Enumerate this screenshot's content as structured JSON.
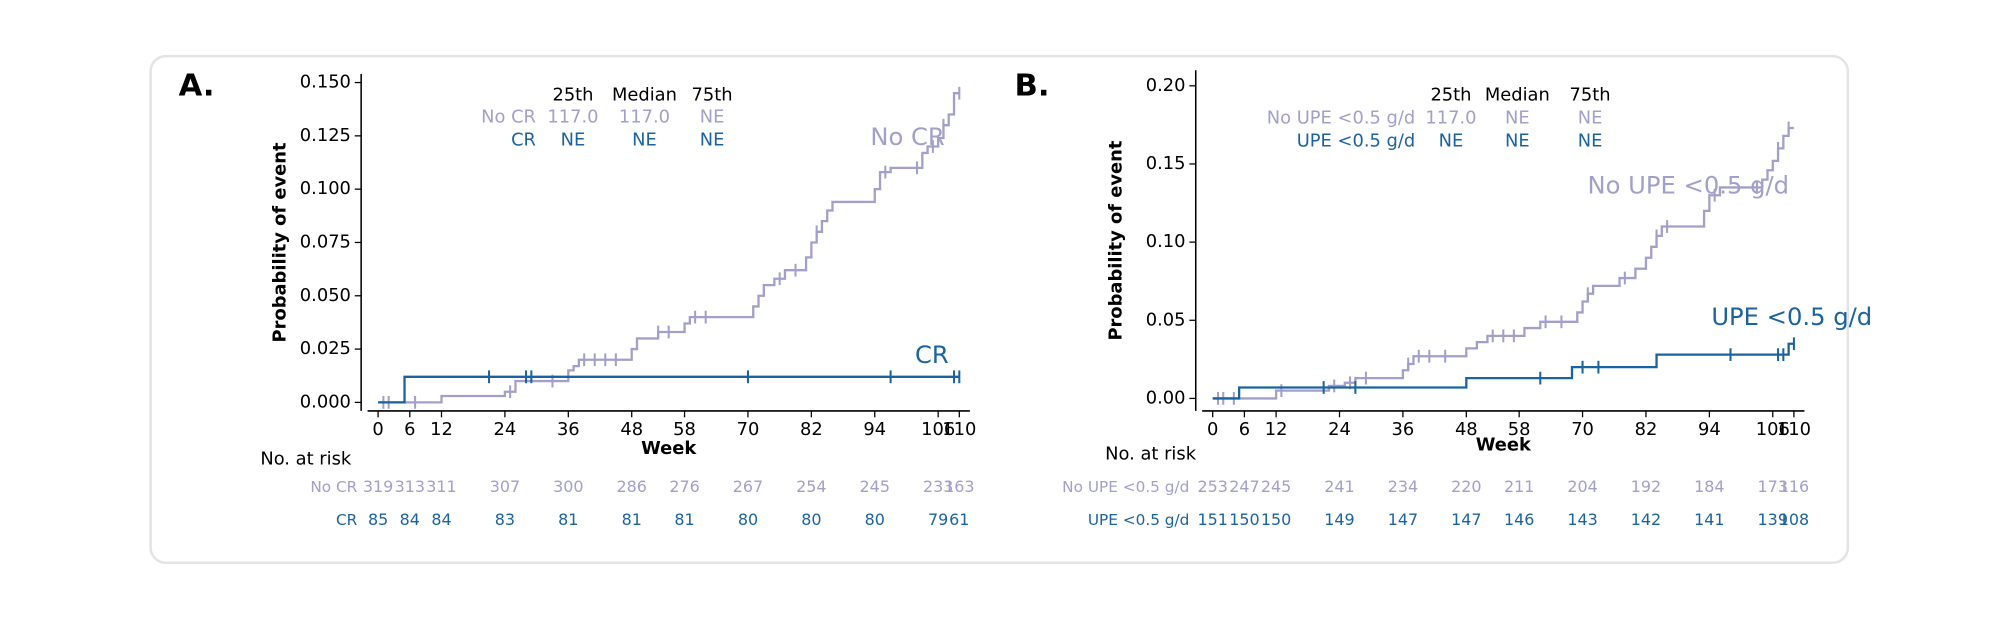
{
  "chart_data": [
    {
      "type": "step",
      "panel_label": "A.",
      "ylabel": "Probability of event",
      "xlabel": "Week",
      "xlim": [
        -2,
        112
      ],
      "ylim": [
        -0.004,
        0.154
      ],
      "xticks": [
        0,
        6,
        12,
        24,
        36,
        48,
        58,
        70,
        82,
        94,
        106,
        110
      ],
      "yticks": [
        {
          "value": 0,
          "label": "0.000"
        },
        {
          "value": 0.025,
          "label": "0.025"
        },
        {
          "value": 0.05,
          "label": "0.050"
        },
        {
          "value": 0.075,
          "label": "0.075"
        },
        {
          "value": 0.1,
          "label": "0.100"
        },
        {
          "value": 0.125,
          "label": "0.125"
        },
        {
          "value": 0.15,
          "label": "0.150"
        }
      ],
      "series": [
        {
          "name": "No CR",
          "color": "#a39fcb",
          "x": [
            0,
            12,
            24,
            26,
            36,
            37,
            38,
            48,
            49,
            53,
            58,
            59,
            71,
            72,
            73,
            75,
            77,
            81,
            82,
            83,
            84,
            85,
            86,
            94,
            95,
            97,
            103,
            104,
            106,
            107,
            108,
            109,
            110
          ],
          "values": [
            0,
            0.003,
            0.005,
            0.01,
            0.015,
            0.017,
            0.02,
            0.025,
            0.03,
            0.033,
            0.037,
            0.04,
            0.045,
            0.05,
            0.055,
            0.058,
            0.062,
            0.068,
            0.075,
            0.08,
            0.085,
            0.09,
            0.094,
            0.1,
            0.108,
            0.11,
            0.117,
            0.12,
            0.124,
            0.13,
            0.135,
            0.145,
            0.145
          ],
          "censored": {
            "x": [
              1,
              2,
              7,
              25,
              33,
              39,
              41,
              43,
              45,
              53,
              55,
              60,
              62,
              76,
              79,
              83,
              96,
              102,
              105,
              107,
              110
            ],
            "values": [
              0,
              0,
              0,
              0.005,
              0.01,
              0.02,
              0.02,
              0.02,
              0.02,
              0.033,
              0.033,
              0.04,
              0.04,
              0.058,
              0.062,
              0.08,
              0.108,
              0.11,
              0.12,
              0.13,
              0.145
            ]
          }
        },
        {
          "name": "CR",
          "color": "#1b63a0",
          "x": [
            0,
            5,
            110
          ],
          "values": [
            0,
            0.012,
            0.012
          ],
          "censored": {
            "x": [
              21,
              28,
              29,
              70,
              97,
              109,
              110
            ],
            "values": [
              0.012,
              0.012,
              0.012,
              0.012,
              0.012,
              0.012,
              0.012
            ]
          }
        }
      ],
      "summary_table": {
        "columns": [
          "25th",
          "Median",
          "75th"
        ],
        "rows": [
          {
            "label": "No CR",
            "values": [
              "117.0",
              "117.0",
              "NE"
            ]
          },
          {
            "label": "CR",
            "values": [
              "NE",
              "NE",
              "NE"
            ]
          }
        ]
      },
      "risk_table": {
        "title": "No. at risk",
        "rows": [
          {
            "label": "No CR",
            "values": [
              319,
              313,
              311,
              307,
              300,
              286,
              276,
              267,
              254,
              245,
              233,
              163
            ]
          },
          {
            "label": "CR",
            "values": [
              85,
              84,
              84,
              83,
              81,
              81,
              81,
              80,
              80,
              80,
              79,
              61
            ]
          }
        ]
      }
    },
    {
      "type": "step",
      "panel_label": "B.",
      "ylabel": "Probability of event",
      "xlabel": "Week",
      "xlim": [
        -2,
        112
      ],
      "ylim": [
        -0.008,
        0.21
      ],
      "xticks": [
        0,
        6,
        12,
        24,
        36,
        48,
        58,
        70,
        82,
        94,
        106,
        110
      ],
      "yticks": [
        {
          "value": 0,
          "label": "0.00"
        },
        {
          "value": 0.05,
          "label": "0.05"
        },
        {
          "value": 0.1,
          "label": "0.10"
        },
        {
          "value": 0.15,
          "label": "0.15"
        },
        {
          "value": 0.2,
          "label": "0.20"
        }
      ],
      "series": [
        {
          "name": "No UPE <0.5 g/d",
          "color": "#a39fcb",
          "x": [
            0,
            12,
            22,
            25,
            27,
            36,
            37,
            38,
            48,
            50,
            52,
            59,
            62,
            69,
            70,
            71,
            72,
            77,
            80,
            82,
            83,
            84,
            85,
            93,
            94,
            96,
            104,
            105,
            106,
            107,
            108,
            109,
            110
          ],
          "values": [
            0,
            0.005,
            0.008,
            0.01,
            0.013,
            0.018,
            0.022,
            0.027,
            0.032,
            0.036,
            0.04,
            0.045,
            0.049,
            0.055,
            0.062,
            0.067,
            0.072,
            0.077,
            0.083,
            0.09,
            0.097,
            0.104,
            0.11,
            0.12,
            0.13,
            0.135,
            0.14,
            0.146,
            0.152,
            0.16,
            0.168,
            0.173,
            0.173
          ],
          "censored": {
            "x": [
              1,
              2,
              4,
              13,
              23,
              26,
              29,
              37,
              39,
              41,
              44,
              53,
              55,
              57,
              63,
              66,
              71,
              78,
              84,
              86,
              95,
              103,
              107,
              109
            ],
            "values": [
              0,
              0,
              0,
              0.005,
              0.008,
              0.01,
              0.013,
              0.022,
              0.027,
              0.027,
              0.027,
              0.04,
              0.04,
              0.04,
              0.049,
              0.049,
              0.067,
              0.077,
              0.104,
              0.11,
              0.13,
              0.135,
              0.16,
              0.173
            ]
          }
        },
        {
          "name": "UPE <0.5 g/d",
          "color": "#1b63a0",
          "x": [
            0,
            5,
            48,
            68,
            84,
            109,
            110
          ],
          "values": [
            0,
            0.007,
            0.013,
            0.02,
            0.028,
            0.035,
            0.035
          ],
          "censored": {
            "x": [
              21,
              27,
              62,
              70,
              73,
              98,
              107,
              108,
              110
            ],
            "values": [
              0.007,
              0.007,
              0.013,
              0.02,
              0.02,
              0.028,
              0.028,
              0.028,
              0.035
            ]
          }
        }
      ],
      "summary_table": {
        "columns": [
          "25th",
          "Median",
          "75th"
        ],
        "rows": [
          {
            "label": "No UPE <0.5 g/d",
            "values": [
              "117.0",
              "NE",
              "NE"
            ]
          },
          {
            "label": "UPE <0.5 g/d",
            "values": [
              "NE",
              "NE",
              "NE"
            ]
          }
        ]
      },
      "risk_table": {
        "title": "No. at risk",
        "rows": [
          {
            "label": "No UPE <0.5 g/d",
            "values": [
              253,
              247,
              245,
              241,
              234,
              220,
              211,
              204,
              192,
              184,
              173,
              116
            ]
          },
          {
            "label": "UPE <0.5 g/d",
            "values": [
              151,
              150,
              150,
              149,
              147,
              147,
              146,
              143,
              142,
              141,
              139,
              108
            ]
          }
        ]
      }
    }
  ]
}
